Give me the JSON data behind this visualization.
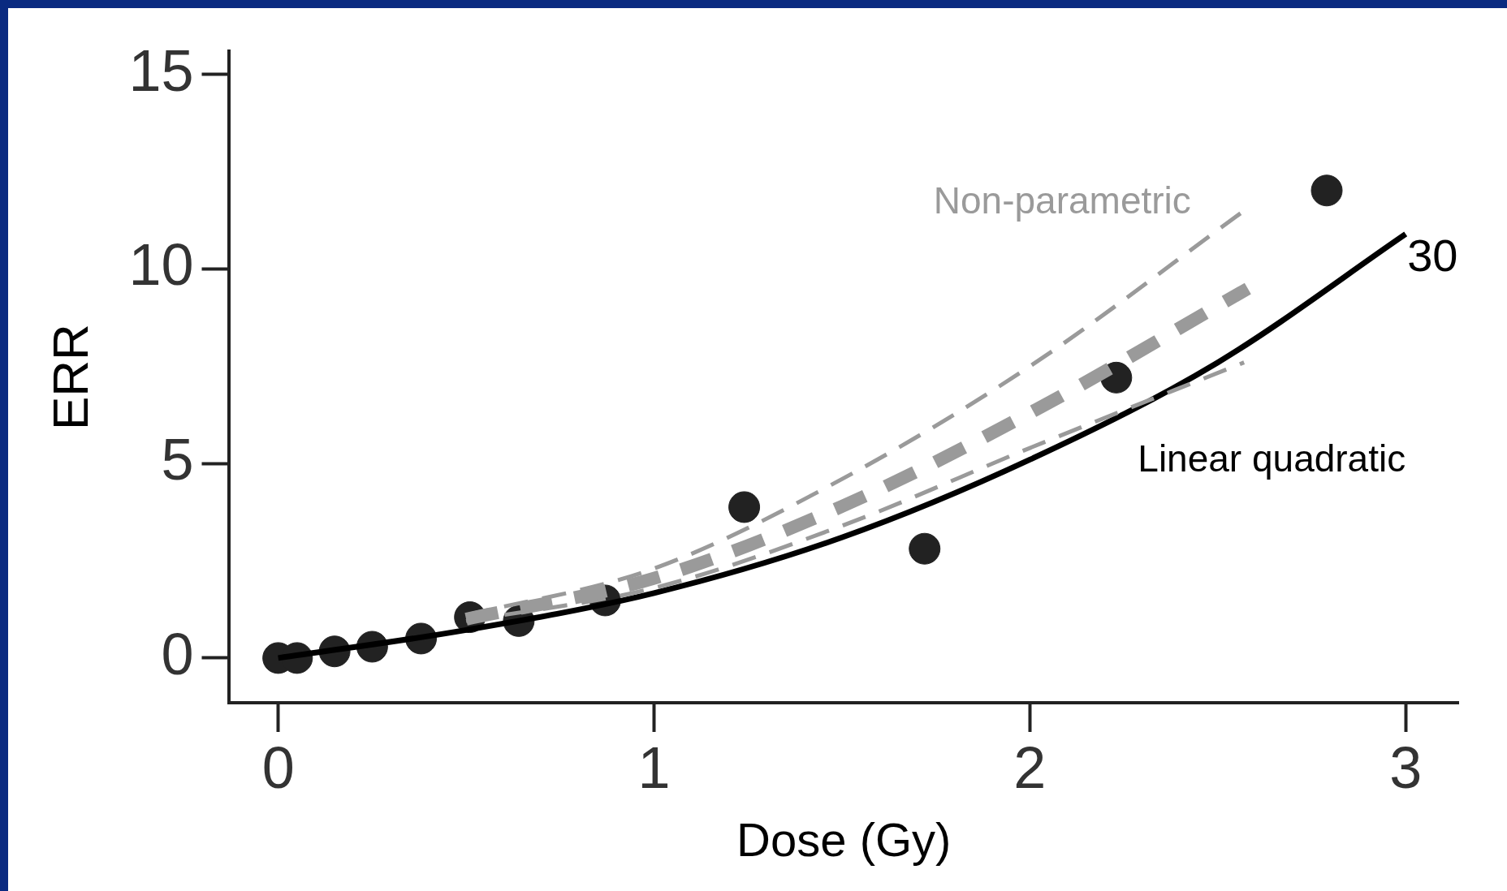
{
  "chart_data": {
    "type": "scatter",
    "xlabel": "Dose (Gy)",
    "ylabel": "ERR",
    "xlim": [
      -0.13,
      3.14
    ],
    "ylim": [
      -1.15,
      15.6
    ],
    "xticks": [
      0,
      1,
      2,
      3
    ],
    "yticks": [
      0,
      5,
      10,
      15
    ],
    "grid": false,
    "legend": false,
    "series": [
      {
        "type": "line",
        "name": "Non-parametric",
        "color": "#9a9a9a",
        "line_style": "dashed",
        "x": [
          0.5,
          1,
          1.5,
          2,
          2.58
        ],
        "values": [
          1.0,
          2.05,
          3.9,
          6.3,
          9.5
        ]
      },
      {
        "type": "line",
        "color": "#9a9a9a",
        "line_style": "dashed",
        "x": [
          0.5,
          1,
          1.5,
          2,
          2.57
        ],
        "values": [
          1.1,
          2.3,
          4.6,
          7.5,
          11.5
        ]
      },
      {
        "type": "line",
        "color": "#9a9a9a",
        "line_style": "dashed",
        "x": [
          0.5,
          1,
          1.5,
          2,
          2.57
        ],
        "values": [
          0.95,
          1.8,
          3.4,
          5.4,
          7.6
        ]
      },
      {
        "type": "line",
        "name": "Linear quadratic",
        "color": "#000000",
        "line_style": "solid",
        "x": [
          0,
          0.5,
          1,
          1.5,
          2,
          2.5,
          3
        ],
        "values": [
          0,
          0.72,
          1.67,
          3.1,
          5.1,
          7.6,
          10.9
        ]
      },
      {
        "color": "#222222",
        "marker": "circle",
        "x": [
          0,
          0.05,
          0.15,
          0.25,
          0.38,
          0.51,
          0.64,
          0.87,
          1.24,
          1.72,
          2.23,
          2.79
        ],
        "values": [
          0,
          0,
          0.17,
          0.29,
          0.5,
          1.05,
          0.95,
          1.48,
          3.88,
          2.81,
          7.21,
          12.02
        ]
      }
    ],
    "annotations": [
      {
        "text": "30",
        "x": 3,
        "y": 10.9
      }
    ]
  }
}
